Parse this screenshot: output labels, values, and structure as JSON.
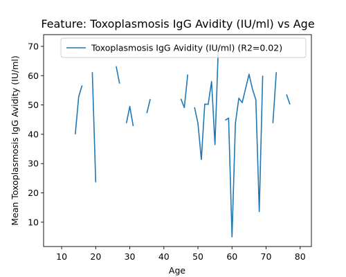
{
  "chart_data": {
    "type": "line",
    "title": "Feature: Toxoplasmosis IgG Avidity (IU/ml) vs Age",
    "xlabel": "Age",
    "ylabel": "Mean Toxoplasmosis IgG Avidity (IU/ml)",
    "xlim": [
      4.7,
      83.3
    ],
    "ylim": [
      1.7,
      74.0
    ],
    "xticks": [
      10,
      20,
      30,
      40,
      50,
      60,
      70,
      80
    ],
    "yticks": [
      10,
      20,
      30,
      40,
      50,
      60,
      70
    ],
    "grid": false,
    "legend_position": "top-right",
    "series": [
      {
        "name": "Toxoplasmosis IgG Avidity (IU/ml) (R2=0.02)",
        "color": "#1f77b4",
        "points": [
          [
            14,
            40
          ],
          [
            15,
            52.8
          ],
          [
            16,
            56.7
          ],
          [
            17,
            null
          ],
          [
            19,
            61.2
          ],
          [
            20,
            23.6
          ],
          [
            21,
            null
          ],
          [
            26,
            63.2
          ],
          [
            27,
            57.3
          ],
          [
            28,
            null
          ],
          [
            29,
            43.8
          ],
          [
            30,
            49.5
          ],
          [
            31,
            42.8
          ],
          [
            32,
            null
          ],
          [
            35,
            47.2
          ],
          [
            36,
            52.0
          ],
          [
            37,
            null
          ],
          [
            45,
            52.1
          ],
          [
            46,
            49.1
          ],
          [
            47,
            60.4
          ],
          [
            48,
            null
          ],
          [
            49,
            49.2
          ],
          [
            50,
            43.8
          ],
          [
            51,
            31.4
          ],
          [
            52,
            50.3
          ],
          [
            53,
            50.2
          ],
          [
            54,
            58.0
          ],
          [
            55,
            36.5
          ],
          [
            56,
            70.0
          ],
          [
            57,
            null
          ],
          [
            58,
            44.8
          ],
          [
            59,
            45.5
          ],
          [
            60,
            5.0
          ],
          [
            61,
            43.8
          ],
          [
            62,
            52.3
          ],
          [
            63,
            50.8
          ],
          [
            64,
            55.7
          ],
          [
            65,
            60.5
          ],
          [
            66,
            55.4
          ],
          [
            67,
            51.8
          ],
          [
            68,
            13.6
          ],
          [
            69,
            60.0
          ],
          [
            70,
            null
          ],
          [
            72,
            43.8
          ],
          [
            73,
            61.2
          ],
          [
            74,
            null
          ],
          [
            76,
            53.6
          ],
          [
            77,
            50.2
          ]
        ]
      }
    ]
  }
}
